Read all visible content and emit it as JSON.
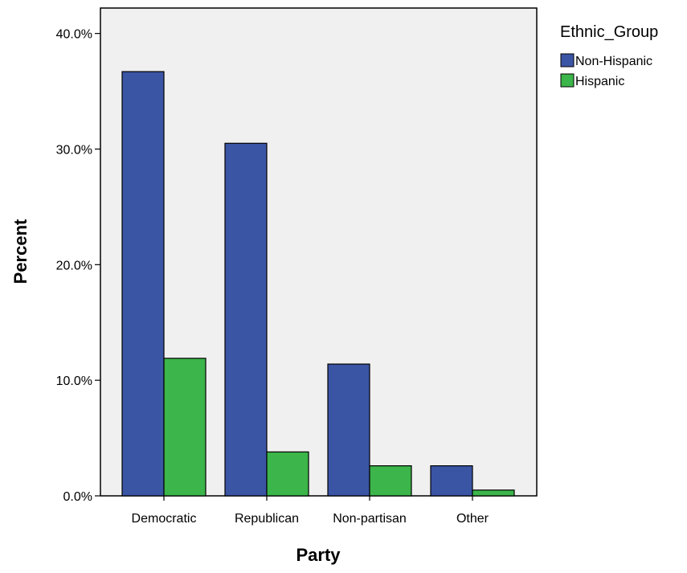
{
  "chart_data": {
    "type": "bar",
    "xlabel": "Party",
    "ylabel": "Percent",
    "categories": [
      "Democratic",
      "Republican",
      "Non-partisan",
      "Other"
    ],
    "series": [
      {
        "name": "Non-Hispanic",
        "values": [
          36.7,
          30.5,
          11.4,
          2.6
        ],
        "color": "#3b55a5"
      },
      {
        "name": "Hispanic",
        "values": [
          11.9,
          3.8,
          2.6,
          0.5
        ],
        "color": "#3cb54a"
      }
    ],
    "y_ticks": [
      0,
      10,
      20,
      30,
      40
    ],
    "y_tick_labels": [
      "0.0%",
      "10.0%",
      "20.0%",
      "30.0%",
      "40.0%"
    ],
    "ylim": [
      0,
      42.2
    ],
    "legend": {
      "title": "Ethnic_Group",
      "position": "right"
    },
    "plot_background": "#f0f0f0",
    "grid": false
  }
}
